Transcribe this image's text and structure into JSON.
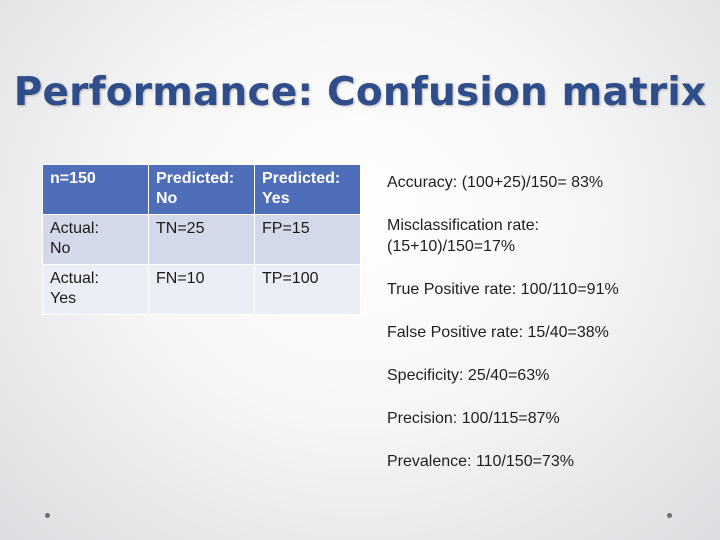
{
  "slide": {
    "title": "Performance: Confusion matrix"
  },
  "table": {
    "header": [
      "n=150",
      "Predicted:\nNo",
      "Predicted:\nYes"
    ],
    "rows": [
      [
        "Actual:\nNo",
        "TN=25",
        "FP=15"
      ],
      [
        "Actual:\nYes",
        "FN=10",
        "TP=100"
      ]
    ]
  },
  "metrics": [
    "Accuracy: (100+25)/150= 83%",
    "Misclassification rate:\n(15+10)/150=17%",
    "True Positive rate: 100/110=91%",
    "False Positive rate: 15/40=38%",
    "Specificity: 25/40=63%",
    "Precision: 100/115=87%",
    "Prevalence: 110/150=73%"
  ],
  "colors": {
    "title": "#2f4d8a",
    "header_fill": "#4f6eb9",
    "row1_fill": "#d4d9ea",
    "row2_fill": "#ebeef5"
  }
}
